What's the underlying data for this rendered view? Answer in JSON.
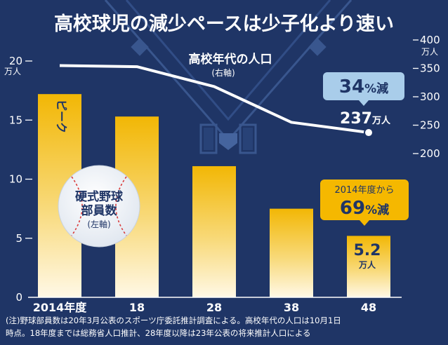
{
  "title": "高校球児の減少ペースは少子化より速い",
  "left_axis": {
    "unit": "万人",
    "ticks": [
      0,
      5,
      10,
      15,
      20
    ]
  },
  "right_axis": {
    "unit": "万人",
    "ticks": [
      200,
      250,
      300,
      350,
      400
    ]
  },
  "peak_label": "ピーク",
  "baseball_label": [
    "硬式野球",
    "部員数"
  ],
  "baseball_sub": "(左軸)",
  "line_label": "高校年代の人口",
  "line_sub": "(右軸)",
  "callout_pop": {
    "value": "34",
    "suffix": "%減"
  },
  "pop_end": {
    "value": "237",
    "unit": "万人"
  },
  "callout_players": {
    "line1": "2014年度から",
    "value": "69",
    "suffix": "%減"
  },
  "players_end": {
    "value": "5.2",
    "unit": "万人"
  },
  "note": [
    "(注)野球部員数は20年3月公表のスポーツ庁委託推計調査による。高校年代の人口は10月1日",
    "時点。18年度までは総務省人口推計、28年度以降は23年公表の将来推計人口による"
  ],
  "colors": {
    "background": "#1f3566",
    "bar_top": "#f2b705",
    "bar_bottom": "#ffffff",
    "line": "#ffffff",
    "callout_blue": "#a9cdea",
    "callout_gold": "#f5b800",
    "accent_text": "#f5c518"
  },
  "chart_data": {
    "type": "bar",
    "categories": [
      "2014年度",
      "18",
      "28",
      "38",
      "48"
    ],
    "series": [
      {
        "values": [
          17.2,
          15.3,
          11.1,
          7.5,
          5.2
        ],
        "axis": "left"
      },
      {
        "values": [
          355,
          353,
          318,
          255,
          237
        ],
        "axis": "right",
        "type": "line"
      }
    ],
    "ylim": [
      0,
      20
    ],
    "y2lim": [
      200,
      400
    ]
  }
}
